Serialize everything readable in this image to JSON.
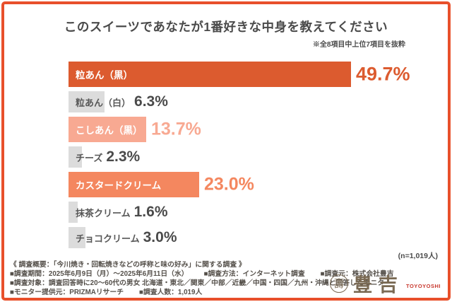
{
  "frame": {
    "border_color": "#E8502B",
    "background": "#FFFFFF"
  },
  "header": {
    "title": "このスイーツであなたが1番好きな中身を教えてください",
    "note": "※全8項目中上位7項目を抜粋"
  },
  "chart_data": {
    "type": "bar",
    "orientation": "horizontal",
    "title": "このスイーツであなたが1番好きな中身を教えてください",
    "subtitle": "※全8項目中上位7項目を抜粋",
    "unit": "%",
    "xlim": [
      0,
      55
    ],
    "categories": [
      "粒あん（黒）",
      "粒あん（白）",
      "こしあん（黒）",
      "チーズ",
      "カスタードクリーム",
      "抹茶クリーム",
      "チョコクリーム"
    ],
    "values": [
      49.7,
      6.3,
      13.7,
      2.3,
      23.0,
      1.6,
      3.0
    ],
    "value_labels": [
      "49.7%",
      "6.3%",
      "13.7%",
      "2.3%",
      "23.0%",
      "1.6%",
      "3.0%"
    ],
    "highlighted": [
      true,
      false,
      true,
      false,
      true,
      false,
      false
    ],
    "bar_colors": [
      "#DC5B2F",
      "#DCDCDC",
      "#F8A992",
      "#DCDCDC",
      "#F4875F",
      "#DCDCDC",
      "#DCDCDC"
    ],
    "sample_note": "(n=1,019人)"
  },
  "footer": {
    "summary": "《 調査概要：「今川焼き・回転焼きなどの呼称と味の好み」に関する調査 》",
    "lines": [
      [
        "■調査期間：2025年6月9日（月）〜2025年6月11日（水）",
        "■調査方法：インターネット調査",
        "■調査元：株式会社豊吉"
      ],
      [
        "■調査対象：調査回答時に20〜60代の男女 北海道・東北／関東／中部／近畿／中国・四国／九州・沖縄と回答したモニター"
      ],
      [
        "■モニター提供元：PRIZMAリサーチ",
        "■調査人数：1,019人"
      ]
    ]
  },
  "logo": {
    "seal_glyph": "壽",
    "kanji": "豊吉",
    "romaji": "TOYOYOSHI",
    "kanji_color": "#7A6A54",
    "romaji_color": "#C8372D"
  },
  "colors": {
    "accent_orange": "#DC5B2F",
    "salmon_light": "#F8A992",
    "salmon": "#F4875F",
    "gray_bar": "#DCDCDC",
    "text_dark": "#4A4A4A",
    "footer_text": "#55504A"
  }
}
